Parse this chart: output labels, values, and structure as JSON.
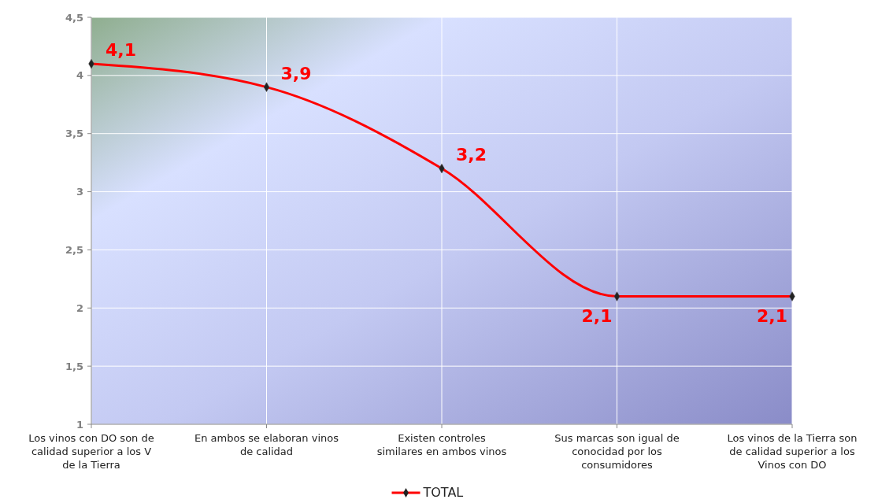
{
  "chart_data": {
    "type": "line",
    "categories": [
      "Los vinos con DO son de calidad superior a los V de la Tierra",
      "En ambos se elaboran vinos de calidad",
      "Existen controles similares en ambos vinos",
      "Sus marcas son igual de conocidad por los consumidores",
      "Los vinos de la Tierra son de calidad superior a los Vinos con DO"
    ],
    "series": [
      {
        "name": "TOTAL",
        "color": "#ff0000",
        "values": [
          4.1,
          3.9,
          3.2,
          2.1,
          2.1
        ],
        "value_labels": [
          "4,1",
          "3,9",
          "3,2",
          "2,1",
          "2,1"
        ]
      }
    ],
    "ylim": [
      1,
      4.5
    ],
    "yticks": [
      1,
      {
        "value": 1.5,
        "label": "1,5"
      },
      2,
      {
        "value": 2.5,
        "label": "2,5"
      },
      3,
      {
        "value": 3.5,
        "label": "3,5"
      },
      4,
      {
        "value": 4.5,
        "label": "4,5"
      }
    ],
    "grid": true,
    "legend": "bottom",
    "marker": "diamond",
    "line_style": "solid"
  }
}
